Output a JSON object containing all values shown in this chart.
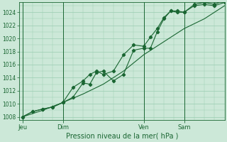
{
  "xlabel": "Pression niveau de la mer( hPa )",
  "ylim": [
    1007.5,
    1025.5
  ],
  "yticks": [
    1008,
    1010,
    1012,
    1014,
    1016,
    1018,
    1020,
    1022,
    1024
  ],
  "background_color": "#cce8d8",
  "grid_color": "#99ccb0",
  "line_color": "#1a6632",
  "xtick_labels": [
    "Jeu",
    "Dim",
    "Ven",
    "Sam"
  ],
  "xtick_positions": [
    0,
    24,
    72,
    96
  ],
  "xlim": [
    -2,
    120
  ],
  "line1": [
    [
      0,
      1008.0
    ],
    [
      6,
      1008.8
    ],
    [
      12,
      1009.2
    ],
    [
      18,
      1009.5
    ],
    [
      24,
      1010.2
    ],
    [
      30,
      1011.0
    ],
    [
      36,
      1013.2
    ],
    [
      40,
      1013.0
    ],
    [
      44,
      1014.8
    ],
    [
      48,
      1015.0
    ],
    [
      54,
      1013.5
    ],
    [
      60,
      1014.5
    ],
    [
      66,
      1018.2
    ],
    [
      72,
      1018.5
    ],
    [
      76,
      1018.5
    ],
    [
      80,
      1021.0
    ],
    [
      84,
      1023.0
    ],
    [
      88,
      1024.2
    ],
    [
      92,
      1024.2
    ],
    [
      96,
      1024.0
    ],
    [
      102,
      1025.0
    ],
    [
      108,
      1025.2
    ],
    [
      114,
      1025.0
    ],
    [
      120,
      1025.5
    ]
  ],
  "line2": [
    [
      0,
      1008.0
    ],
    [
      6,
      1008.8
    ],
    [
      12,
      1009.2
    ],
    [
      18,
      1009.5
    ],
    [
      24,
      1010.2
    ],
    [
      30,
      1012.5
    ],
    [
      36,
      1013.5
    ],
    [
      40,
      1014.5
    ],
    [
      44,
      1015.0
    ],
    [
      48,
      1014.5
    ],
    [
      54,
      1015.0
    ],
    [
      60,
      1017.5
    ],
    [
      66,
      1019.0
    ],
    [
      72,
      1018.8
    ],
    [
      76,
      1020.2
    ],
    [
      80,
      1021.5
    ],
    [
      84,
      1023.2
    ],
    [
      88,
      1024.2
    ],
    [
      92,
      1024.0
    ],
    [
      96,
      1024.0
    ],
    [
      102,
      1025.2
    ],
    [
      108,
      1025.5
    ],
    [
      114,
      1025.2
    ],
    [
      120,
      1025.8
    ]
  ],
  "line3": [
    [
      0,
      1008.0
    ],
    [
      12,
      1009.0
    ],
    [
      24,
      1010.2
    ],
    [
      36,
      1011.5
    ],
    [
      48,
      1013.0
    ],
    [
      60,
      1015.0
    ],
    [
      72,
      1017.5
    ],
    [
      84,
      1019.5
    ],
    [
      96,
      1021.5
    ],
    [
      108,
      1023.0
    ],
    [
      120,
      1025.0
    ]
  ]
}
